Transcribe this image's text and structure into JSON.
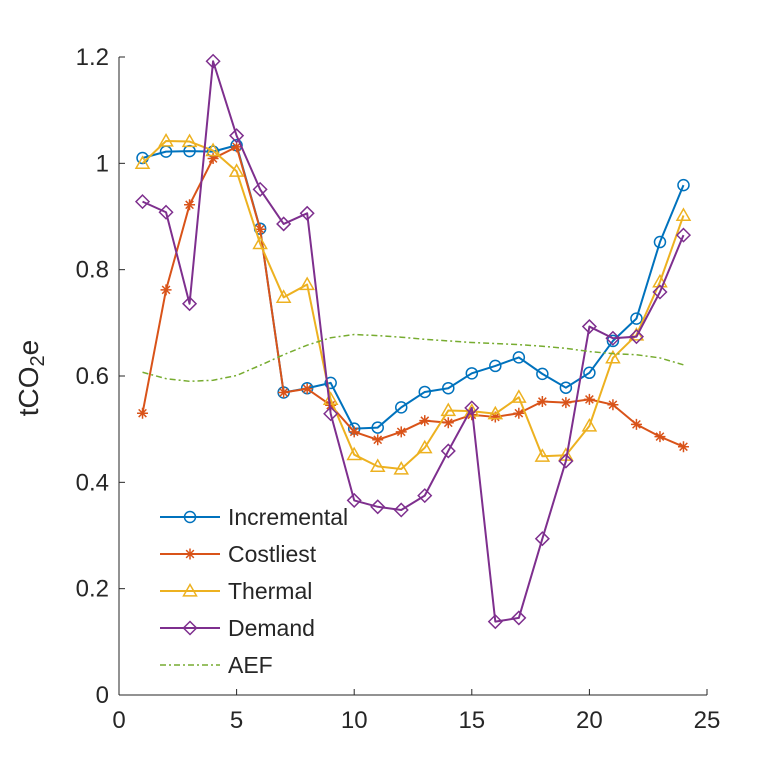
{
  "chart_data": {
    "type": "line",
    "xlabel": "",
    "ylabel": "tCO2e",
    "ylabel_parts": [
      "tCO",
      "2",
      "e"
    ],
    "xlim": [
      0,
      25
    ],
    "ylim": [
      0,
      1.2
    ],
    "x_ticks": [
      0,
      5,
      10,
      15,
      20,
      25
    ],
    "y_ticks": [
      0,
      0.2,
      0.4,
      0.6,
      0.8,
      1,
      1.2
    ],
    "x_tick_labels": [
      "0",
      "5",
      "10",
      "15",
      "20",
      "25"
    ],
    "y_tick_labels": [
      "0",
      "0.2",
      "0.4",
      "0.6",
      "0.8",
      "1",
      "1.2"
    ],
    "grid": false,
    "legend_position": "bottom-left",
    "series": [
      {
        "name": "Incremental",
        "color": "#0072BD",
        "marker": "circle",
        "line": "solid",
        "x": [
          1,
          2,
          3,
          4,
          5,
          6,
          7,
          8,
          9,
          10,
          11,
          12,
          13,
          14,
          15,
          16,
          17,
          18,
          19,
          20,
          21,
          22,
          23,
          24
        ],
        "values": [
          1.01,
          1.022,
          1.023,
          1.022,
          1.034,
          0.877,
          0.569,
          0.577,
          0.587,
          0.501,
          0.503,
          0.541,
          0.57,
          0.577,
          0.605,
          0.619,
          0.635,
          0.604,
          0.578,
          0.606,
          0.666,
          0.708,
          0.852,
          0.959
        ]
      },
      {
        "name": "Costliest",
        "color": "#D95319",
        "marker": "star",
        "line": "solid",
        "x": [
          1,
          2,
          3,
          4,
          5,
          6,
          7,
          8,
          9,
          10,
          11,
          12,
          13,
          14,
          15,
          16,
          17,
          18,
          19,
          20,
          21,
          22,
          23,
          24
        ],
        "values": [
          0.53,
          0.762,
          0.922,
          1.009,
          1.031,
          0.876,
          0.569,
          0.576,
          0.545,
          0.495,
          0.48,
          0.495,
          0.516,
          0.512,
          0.527,
          0.523,
          0.53,
          0.552,
          0.55,
          0.556,
          0.546,
          0.509,
          0.486,
          0.467
        ]
      },
      {
        "name": "Thermal",
        "color": "#EDB120",
        "marker": "triangle",
        "line": "solid",
        "x": [
          1,
          2,
          3,
          4,
          5,
          6,
          7,
          8,
          9,
          10,
          11,
          12,
          13,
          14,
          15,
          16,
          17,
          18,
          19,
          20,
          21,
          22,
          23,
          24
        ],
        "values": [
          1.0,
          1.042,
          1.041,
          1.024,
          0.985,
          0.849,
          0.748,
          0.772,
          0.556,
          0.452,
          0.43,
          0.425,
          0.465,
          0.535,
          0.534,
          0.529,
          0.56,
          0.449,
          0.451,
          0.506,
          0.634,
          0.677,
          0.777,
          0.902
        ]
      },
      {
        "name": "Demand",
        "color": "#7E2F8E",
        "marker": "diamond",
        "line": "solid",
        "x": [
          1,
          2,
          3,
          4,
          5,
          6,
          7,
          8,
          9,
          10,
          11,
          12,
          13,
          14,
          15,
          16,
          17,
          18,
          19,
          20,
          21,
          22,
          23,
          24
        ],
        "values": [
          0.928,
          0.908,
          0.736,
          1.192,
          1.052,
          0.951,
          0.886,
          0.906,
          0.529,
          0.366,
          0.354,
          0.348,
          0.375,
          0.459,
          0.54,
          0.138,
          0.145,
          0.294,
          0.44,
          0.693,
          0.671,
          0.674,
          0.758,
          0.865
        ]
      },
      {
        "name": "AEF",
        "color": "#77AC30",
        "marker": "none",
        "line": "dash-dot",
        "x": [
          1,
          2,
          3,
          4,
          5,
          6,
          7,
          8,
          9,
          10,
          11,
          12,
          13,
          14,
          15,
          16,
          17,
          18,
          19,
          20,
          21,
          22,
          23,
          24
        ],
        "values": [
          0.607,
          0.595,
          0.59,
          0.592,
          0.601,
          0.62,
          0.64,
          0.658,
          0.672,
          0.678,
          0.676,
          0.673,
          0.669,
          0.666,
          0.663,
          0.661,
          0.659,
          0.656,
          0.652,
          0.646,
          0.642,
          0.64,
          0.634,
          0.621
        ]
      }
    ]
  }
}
